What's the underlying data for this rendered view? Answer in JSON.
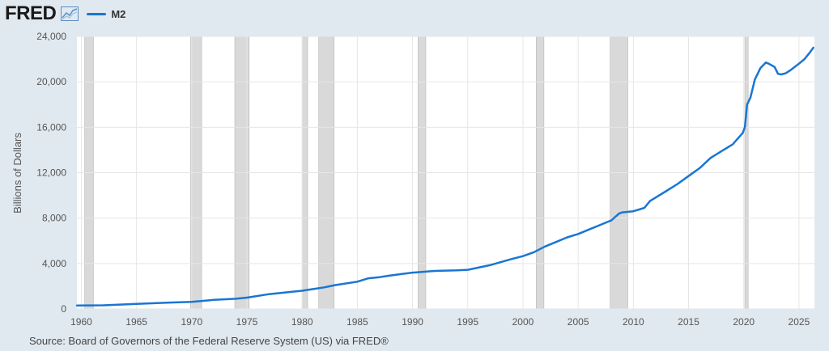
{
  "header": {
    "logo_text": "FRED",
    "logo_icon": "line-chart-icon",
    "legend_label": "M2"
  },
  "colors": {
    "series": "#1976d2",
    "recession": "#d9d9d9",
    "background": "#e1e9f0",
    "plot_bg": "#ffffff"
  },
  "source": "Source: Board of Governors of the Federal Reserve System (US) via FRED®",
  "chart_data": {
    "type": "line",
    "title": "",
    "ylabel": "Billions of Dollars",
    "xlabel": "",
    "ylim": [
      0,
      24000
    ],
    "xlim": [
      1959.6,
      2026.4
    ],
    "yticks": [
      0,
      4000,
      8000,
      12000,
      16000,
      20000,
      24000
    ],
    "ytick_labels": [
      "0",
      "4,000",
      "8,000",
      "12,000",
      "16,000",
      "20,000",
      "24,000"
    ],
    "xticks": [
      1960,
      1965,
      1970,
      1975,
      1980,
      1985,
      1990,
      1995,
      2000,
      2005,
      2010,
      2015,
      2020,
      2025
    ],
    "xtick_labels": [
      "1960",
      "1965",
      "1970",
      "1975",
      "1980",
      "1985",
      "1990",
      "1995",
      "2000",
      "2005",
      "2010",
      "2015",
      "2020",
      "2025"
    ],
    "grid": true,
    "legend": "top-left",
    "recessions": [
      [
        1960.3,
        1961.1
      ],
      [
        1969.9,
        1970.9
      ],
      [
        1973.9,
        1975.2
      ],
      [
        1980.0,
        1980.5
      ],
      [
        1981.5,
        1982.9
      ],
      [
        1990.5,
        1991.2
      ],
      [
        2001.2,
        2001.9
      ],
      [
        2007.9,
        2009.5
      ],
      [
        2020.1,
        2020.4
      ]
    ],
    "series": [
      {
        "name": "M2",
        "x": [
          1959.6,
          1962,
          1965,
          1968,
          1970,
          1972,
          1974,
          1975,
          1977,
          1979,
          1980,
          1982,
          1983,
          1985,
          1986,
          1987,
          1988,
          1990,
          1992,
          1994,
          1995,
          1997,
          1999,
          2000,
          2001,
          2002,
          2003,
          2004,
          2005,
          2006,
          2007,
          2008,
          2008.7,
          2009,
          2010,
          2011,
          2011.5,
          2012,
          2013,
          2014,
          2015,
          2016,
          2017,
          2018,
          2019,
          2019.9,
          2020.1,
          2020.3,
          2020.6,
          2021,
          2021.5,
          2022,
          2022.25,
          2022.8,
          2023.1,
          2023.4,
          2023.8,
          2024.2,
          2024.6,
          2025,
          2025.5,
          2026,
          2026.3
        ],
        "y": [
          300,
          320,
          450,
          560,
          620,
          800,
          900,
          1000,
          1300,
          1500,
          1600,
          1900,
          2100,
          2400,
          2700,
          2800,
          2950,
          3200,
          3350,
          3400,
          3450,
          3850,
          4400,
          4650,
          5000,
          5500,
          5900,
          6300,
          6600,
          7000,
          7400,
          7800,
          8400,
          8500,
          8600,
          8900,
          9500,
          9800,
          10400,
          11000,
          11700,
          12400,
          13300,
          13900,
          14500,
          15500,
          16000,
          18000,
          18600,
          20200,
          21200,
          21700,
          21600,
          21300,
          20700,
          20650,
          20750,
          21000,
          21300,
          21600,
          22000,
          22600,
          23000
        ]
      }
    ]
  }
}
